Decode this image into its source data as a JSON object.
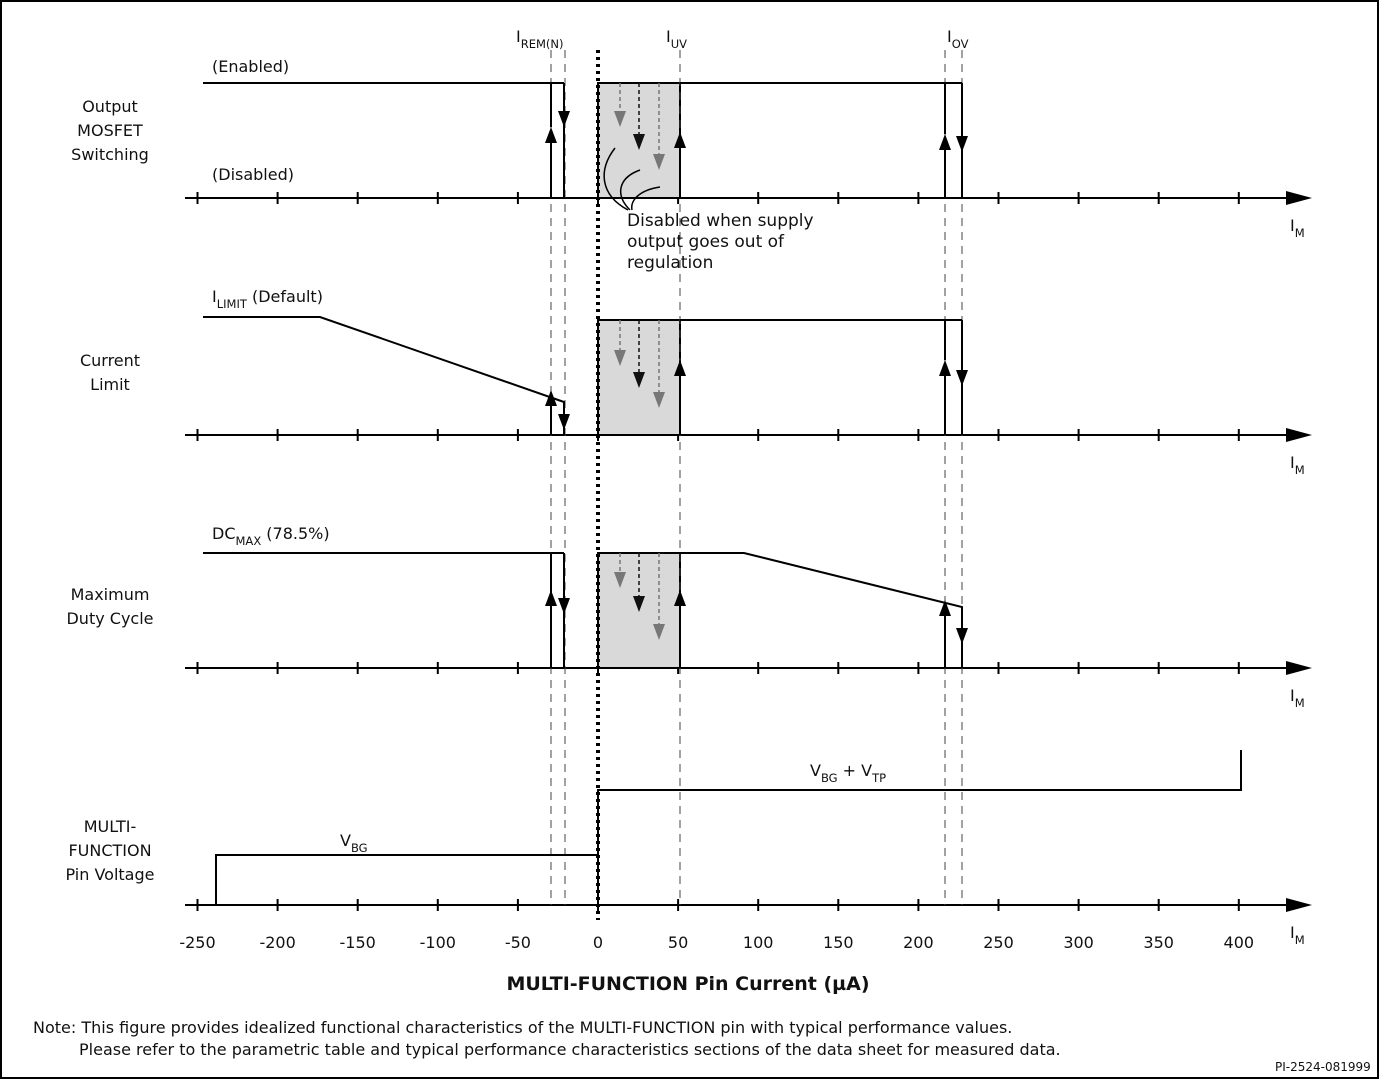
{
  "panels": [
    {
      "id": "mosfet",
      "label": [
        "Output",
        "MOSFET",
        "Switching"
      ],
      "high_label": "(Enabled)",
      "low_label": "(Disabled)"
    },
    {
      "id": "ilimit",
      "label": [
        "Current",
        "Limit"
      ],
      "high_label_main": "I",
      "high_label_sub": "LIMIT",
      "high_label_rest": " (Default)"
    },
    {
      "id": "dcmax",
      "label": [
        "Maximum",
        "Duty Cycle"
      ],
      "high_label_main": "DC",
      "high_label_sub": "MAX",
      "high_label_rest": " (78.5%)"
    },
    {
      "id": "vpin",
      "label": [
        "MULTI-",
        "FUNCTION",
        "Pin Voltage"
      ],
      "low_level_main": "V",
      "low_level_sub": "BG",
      "high_level_main1": "V",
      "high_level_sub1": "BG",
      "high_level_mid": " + V",
      "high_level_sub2": "TP"
    }
  ],
  "thresholds": [
    {
      "main": "I",
      "sub": "REM(N)"
    },
    {
      "main": "I",
      "sub": "UV"
    },
    {
      "main": "I",
      "sub": "OV"
    }
  ],
  "axis": {
    "symbol_main": "I",
    "symbol_sub": "M",
    "tick_labels": [
      "-250",
      "-200",
      "-150",
      "-100",
      "-50",
      "0",
      "50",
      "100",
      "150",
      "200",
      "250",
      "300",
      "350",
      "400"
    ],
    "title": "MULTI-FUNCTION Pin Current (µA)"
  },
  "callout": [
    "Disabled when supply",
    "output goes out of",
    "regulation"
  ],
  "note_line1": "Note: This figure provides idealized functional characteristics of the MULTI-FUNCTION pin with typical performance values.",
  "note_line2": "Please refer to the parametric table and typical performance characteristics sections of the data sheet for measured data.",
  "figure_id": "PI-2524-081999",
  "colors": {
    "line": "#000000",
    "shade": "#d9d9d9",
    "gray_arrow": "#777777"
  }
}
